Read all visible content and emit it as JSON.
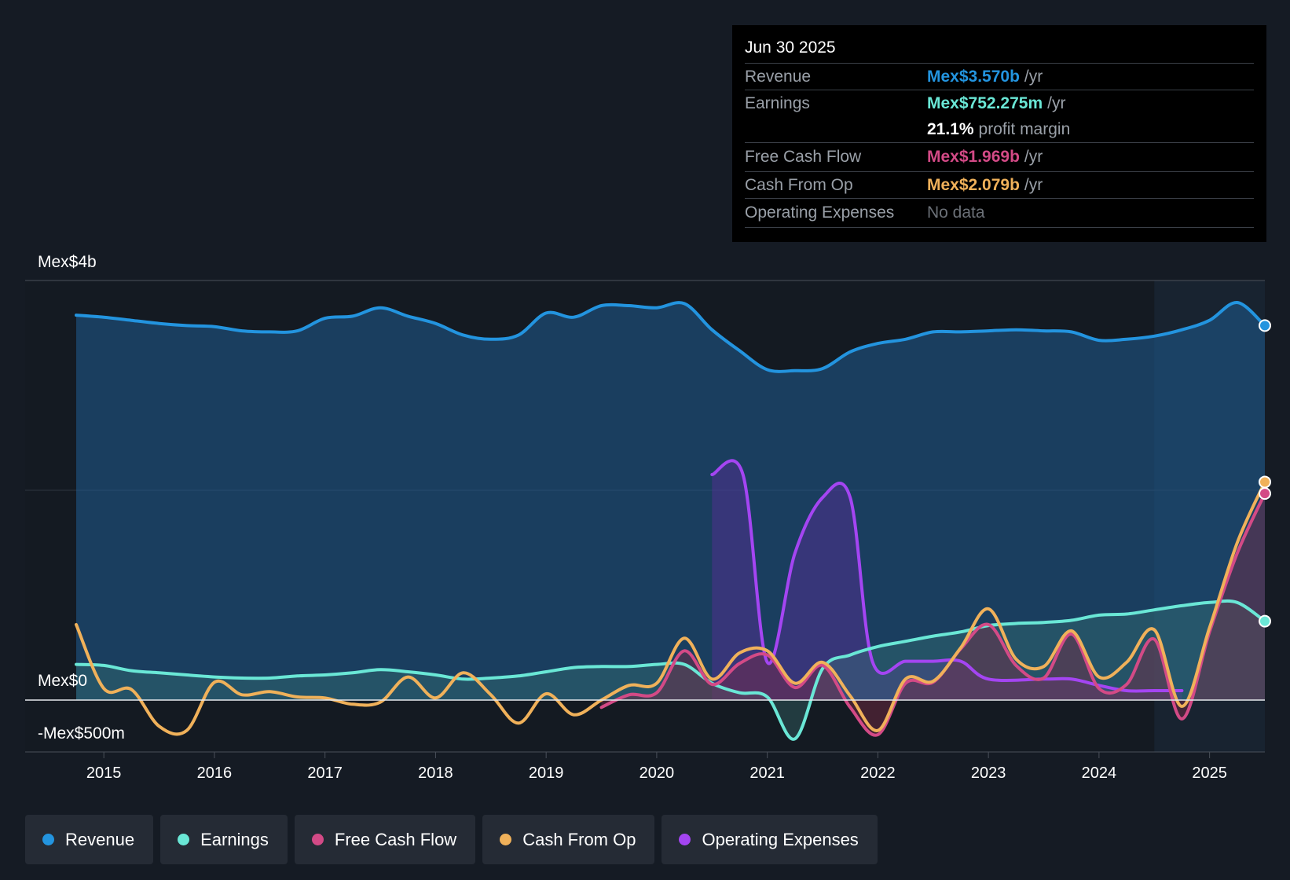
{
  "tooltip": {
    "date": "Jun 30 2025",
    "rows": [
      {
        "name": "Revenue",
        "value": "Mex$3.570b",
        "unit": "/yr",
        "color": "#2394df"
      },
      {
        "name": "Earnings",
        "value": "Mex$752.275m",
        "unit": "/yr",
        "color": "#6ae7d6"
      },
      {
        "name": "",
        "value": "21.1%",
        "unit": "profit margin",
        "color": "#ffffff"
      },
      {
        "name": "Free Cash Flow",
        "value": "Mex$1.969b",
        "unit": "/yr",
        "color": "#d34a86"
      },
      {
        "name": "Cash From Op",
        "value": "Mex$2.079b",
        "unit": "/yr",
        "color": "#f0b15a"
      },
      {
        "name": "Operating Expenses",
        "value": "No data",
        "unit": "",
        "color": "#6b7077"
      }
    ]
  },
  "legend": [
    {
      "label": "Revenue",
      "color": "#2394df"
    },
    {
      "label": "Earnings",
      "color": "#6ae7d6"
    },
    {
      "label": "Free Cash Flow",
      "color": "#d34a86"
    },
    {
      "label": "Cash From Op",
      "color": "#f0b15a"
    },
    {
      "label": "Operating Expenses",
      "color": "#a445f2"
    }
  ],
  "chart_data": {
    "type": "line",
    "ylabels": {
      "top": "Mex$4b",
      "zero": "Mex$0",
      "bottom": "-Mex$500m"
    },
    "ylim": [
      -500,
      4000
    ],
    "xlim": [
      2014.75,
      2025.5
    ],
    "x_ticks": [
      2015,
      2016,
      2017,
      2018,
      2019,
      2020,
      2021,
      2022,
      2023,
      2024,
      2025
    ],
    "x_tick_labels": [
      "2015",
      "2016",
      "2017",
      "2018",
      "2019",
      "2020",
      "2021",
      "2022",
      "2023",
      "2024",
      "2025"
    ],
    "forecast_start": 2024.5,
    "units": "Mex$ m",
    "series": [
      {
        "name": "Revenue",
        "color": "#2394df",
        "fill": true,
        "points": [
          [
            2014.75,
            3670
          ],
          [
            2015.0,
            3650
          ],
          [
            2015.25,
            3620
          ],
          [
            2015.5,
            3590
          ],
          [
            2015.75,
            3570
          ],
          [
            2016.0,
            3560
          ],
          [
            2016.25,
            3520
          ],
          [
            2016.5,
            3510
          ],
          [
            2016.75,
            3520
          ],
          [
            2017.0,
            3640
          ],
          [
            2017.25,
            3660
          ],
          [
            2017.5,
            3740
          ],
          [
            2017.75,
            3660
          ],
          [
            2018.0,
            3590
          ],
          [
            2018.25,
            3480
          ],
          [
            2018.5,
            3440
          ],
          [
            2018.75,
            3480
          ],
          [
            2019.0,
            3690
          ],
          [
            2019.25,
            3650
          ],
          [
            2019.5,
            3760
          ],
          [
            2019.75,
            3760
          ],
          [
            2020.0,
            3740
          ],
          [
            2020.25,
            3780
          ],
          [
            2020.5,
            3530
          ],
          [
            2020.75,
            3330
          ],
          [
            2021.0,
            3150
          ],
          [
            2021.25,
            3140
          ],
          [
            2021.5,
            3160
          ],
          [
            2021.75,
            3320
          ],
          [
            2022.0,
            3400
          ],
          [
            2022.25,
            3440
          ],
          [
            2022.5,
            3510
          ],
          [
            2022.75,
            3510
          ],
          [
            2023.0,
            3520
          ],
          [
            2023.25,
            3530
          ],
          [
            2023.5,
            3520
          ],
          [
            2023.75,
            3510
          ],
          [
            2024.0,
            3430
          ],
          [
            2024.25,
            3440
          ],
          [
            2024.5,
            3470
          ],
          [
            2024.75,
            3530
          ],
          [
            2025.0,
            3620
          ],
          [
            2025.25,
            3790
          ],
          [
            2025.5,
            3570
          ]
        ]
      },
      {
        "name": "Earnings",
        "color": "#6ae7d6",
        "fill": true,
        "points": [
          [
            2014.75,
            340
          ],
          [
            2015.0,
            330
          ],
          [
            2015.25,
            280
          ],
          [
            2015.5,
            260
          ],
          [
            2015.75,
            240
          ],
          [
            2016.0,
            220
          ],
          [
            2016.25,
            210
          ],
          [
            2016.5,
            210
          ],
          [
            2016.75,
            230
          ],
          [
            2017.0,
            240
          ],
          [
            2017.25,
            260
          ],
          [
            2017.5,
            290
          ],
          [
            2017.75,
            270
          ],
          [
            2018.0,
            240
          ],
          [
            2018.25,
            200
          ],
          [
            2018.5,
            210
          ],
          [
            2018.75,
            230
          ],
          [
            2019.0,
            270
          ],
          [
            2019.25,
            310
          ],
          [
            2019.5,
            320
          ],
          [
            2019.75,
            320
          ],
          [
            2020.0,
            340
          ],
          [
            2020.25,
            340
          ],
          [
            2020.5,
            160
          ],
          [
            2020.75,
            70
          ],
          [
            2021.0,
            30
          ],
          [
            2021.25,
            -370
          ],
          [
            2021.5,
            300
          ],
          [
            2021.75,
            430
          ],
          [
            2022.0,
            510
          ],
          [
            2022.25,
            560
          ],
          [
            2022.5,
            610
          ],
          [
            2022.75,
            650
          ],
          [
            2023.0,
            710
          ],
          [
            2023.25,
            730
          ],
          [
            2023.5,
            740
          ],
          [
            2023.75,
            760
          ],
          [
            2024.0,
            810
          ],
          [
            2024.25,
            820
          ],
          [
            2024.5,
            860
          ],
          [
            2024.75,
            900
          ],
          [
            2025.0,
            930
          ],
          [
            2025.25,
            930
          ],
          [
            2025.5,
            752
          ]
        ]
      },
      {
        "name": "Free Cash Flow",
        "color": "#d34a86",
        "fill": true,
        "points": [
          [
            2019.5,
            -70
          ],
          [
            2019.75,
            50
          ],
          [
            2020.0,
            70
          ],
          [
            2020.25,
            470
          ],
          [
            2020.5,
            150
          ],
          [
            2020.75,
            350
          ],
          [
            2021.0,
            430
          ],
          [
            2021.25,
            120
          ],
          [
            2021.5,
            330
          ],
          [
            2021.75,
            -70
          ],
          [
            2022.0,
            -330
          ],
          [
            2022.25,
            160
          ],
          [
            2022.5,
            170
          ],
          [
            2022.75,
            490
          ],
          [
            2023.0,
            720
          ],
          [
            2023.25,
            330
          ],
          [
            2023.5,
            210
          ],
          [
            2023.75,
            630
          ],
          [
            2024.0,
            110
          ],
          [
            2024.25,
            150
          ],
          [
            2024.5,
            580
          ],
          [
            2024.75,
            -180
          ],
          [
            2025.0,
            650
          ],
          [
            2025.25,
            1400
          ],
          [
            2025.5,
            1969
          ]
        ]
      },
      {
        "name": "Cash From Op",
        "color": "#f0b15a",
        "fill": false,
        "points": [
          [
            2014.75,
            720
          ],
          [
            2015.0,
            110
          ],
          [
            2015.25,
            100
          ],
          [
            2015.5,
            -250
          ],
          [
            2015.75,
            -290
          ],
          [
            2016.0,
            170
          ],
          [
            2016.25,
            50
          ],
          [
            2016.5,
            80
          ],
          [
            2016.75,
            30
          ],
          [
            2017.0,
            20
          ],
          [
            2017.25,
            -40
          ],
          [
            2017.5,
            -20
          ],
          [
            2017.75,
            220
          ],
          [
            2018.0,
            20
          ],
          [
            2018.25,
            260
          ],
          [
            2018.5,
            50
          ],
          [
            2018.75,
            -220
          ],
          [
            2019.0,
            60
          ],
          [
            2019.25,
            -140
          ],
          [
            2019.5,
            0
          ],
          [
            2019.75,
            140
          ],
          [
            2020.0,
            160
          ],
          [
            2020.25,
            590
          ],
          [
            2020.5,
            200
          ],
          [
            2020.75,
            450
          ],
          [
            2021.0,
            470
          ],
          [
            2021.25,
            160
          ],
          [
            2021.5,
            360
          ],
          [
            2021.75,
            40
          ],
          [
            2022.0,
            -290
          ],
          [
            2022.25,
            200
          ],
          [
            2022.5,
            180
          ],
          [
            2022.75,
            500
          ],
          [
            2023.0,
            870
          ],
          [
            2023.25,
            390
          ],
          [
            2023.5,
            320
          ],
          [
            2023.75,
            660
          ],
          [
            2024.0,
            220
          ],
          [
            2024.25,
            360
          ],
          [
            2024.5,
            670
          ],
          [
            2024.75,
            -60
          ],
          [
            2025.0,
            690
          ],
          [
            2025.25,
            1500
          ],
          [
            2025.5,
            2079
          ]
        ]
      },
      {
        "name": "Operating Expenses",
        "color": "#a445f2",
        "fill": true,
        "points": [
          [
            2020.5,
            2150
          ],
          [
            2020.78,
            2150
          ],
          [
            2021.0,
            360
          ],
          [
            2021.25,
            1400
          ],
          [
            2021.5,
            1930
          ],
          [
            2021.75,
            1930
          ],
          [
            2021.95,
            370
          ],
          [
            2022.25,
            370
          ],
          [
            2022.5,
            370
          ],
          [
            2022.75,
            370
          ],
          [
            2023.0,
            200
          ],
          [
            2023.5,
            200
          ],
          [
            2023.75,
            200
          ],
          [
            2024.0,
            140
          ],
          [
            2024.25,
            90
          ],
          [
            2024.5,
            90
          ],
          [
            2024.75,
            90
          ]
        ]
      }
    ]
  }
}
